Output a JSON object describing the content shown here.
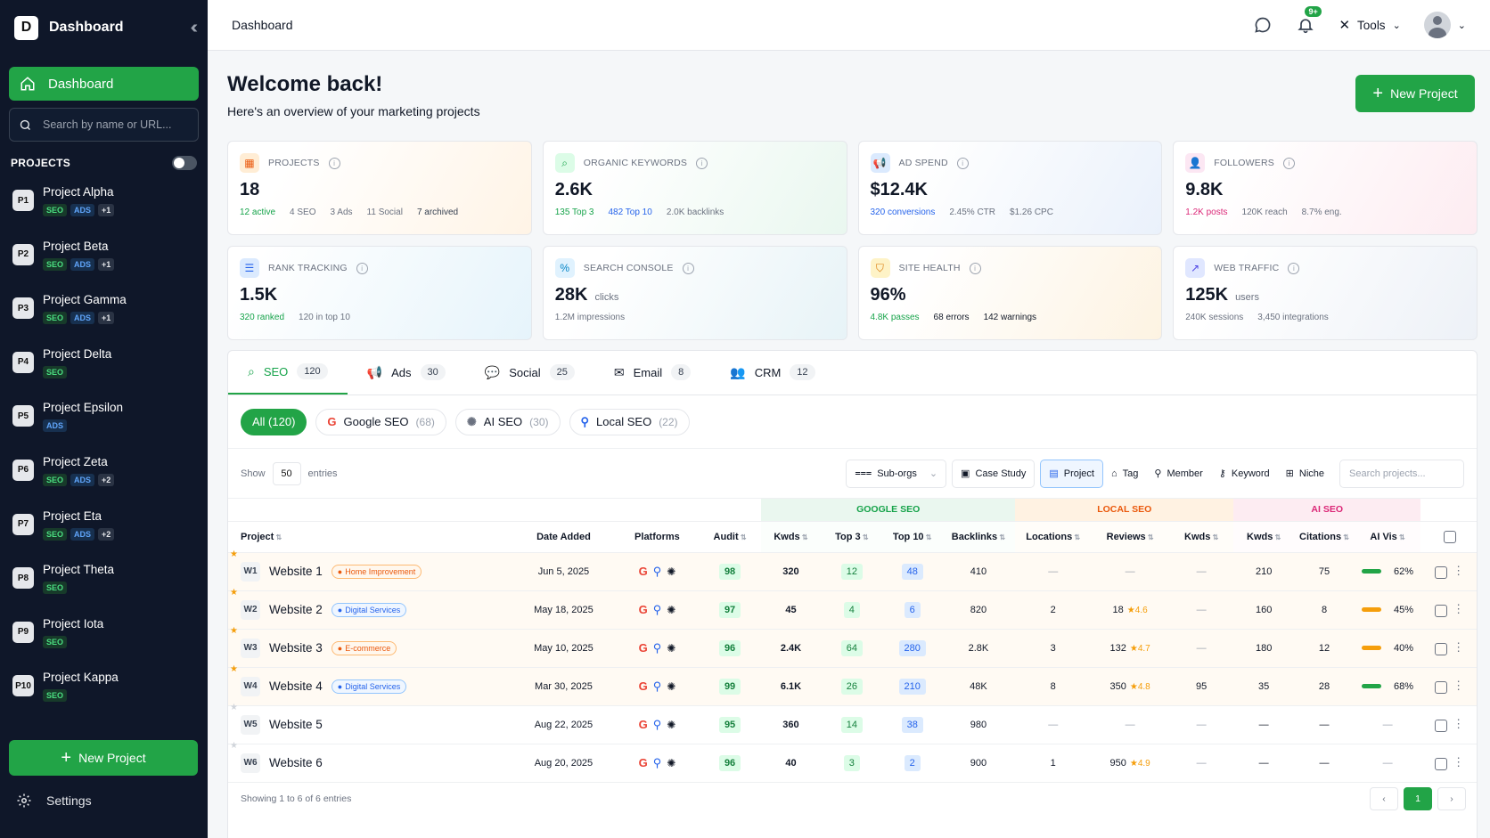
{
  "sidebar": {
    "logo_letter": "D",
    "title": "Dashboard",
    "nav_dashboard": "Dashboard",
    "search_placeholder": "Search by name or URL...",
    "projects_heading": "PROJECTS",
    "projects": [
      {
        "code": "P1",
        "name": "Project Alpha",
        "tags": [
          "SEO",
          "ADS",
          "+1"
        ]
      },
      {
        "code": "P2",
        "name": "Project Beta",
        "tags": [
          "SEO",
          "ADS",
          "+1"
        ]
      },
      {
        "code": "P3",
        "name": "Project Gamma",
        "tags": [
          "SEO",
          "ADS",
          "+1"
        ]
      },
      {
        "code": "P4",
        "name": "Project Delta",
        "tags": [
          "SEO"
        ]
      },
      {
        "code": "P5",
        "name": "Project Epsilon",
        "tags": [
          "ADS"
        ]
      },
      {
        "code": "P6",
        "name": "Project Zeta",
        "tags": [
          "SEO",
          "ADS",
          "+2"
        ]
      },
      {
        "code": "P7",
        "name": "Project Eta",
        "tags": [
          "SEO",
          "ADS",
          "+2"
        ]
      },
      {
        "code": "P8",
        "name": "Project Theta",
        "tags": [
          "SEO"
        ]
      },
      {
        "code": "P9",
        "name": "Project Iota",
        "tags": [
          "SEO"
        ]
      },
      {
        "code": "P10",
        "name": "Project Kappa",
        "tags": [
          "SEO"
        ]
      }
    ],
    "new_project": "New Project",
    "settings": "Settings"
  },
  "topbar": {
    "breadcrumb": "Dashboard",
    "notif_badge": "9+",
    "tools": "Tools"
  },
  "welcome": {
    "title": "Welcome back!",
    "subtitle": "Here's an overview of your marketing projects",
    "new_project": "New Project"
  },
  "cards": [
    {
      "label": "PROJECTS",
      "value": "18",
      "unit": "",
      "subs": [
        {
          "t": "12 active",
          "c": "#16a34a"
        },
        {
          "t": "4 SEO",
          "c": ""
        },
        {
          "t": "3 Ads",
          "c": ""
        },
        {
          "t": "11 Social",
          "c": ""
        },
        {
          "t": "7 archived",
          "c": "#374151"
        }
      ],
      "cls": "c-orange",
      "iconbg": "#ffedd5",
      "iconc": "#ea580c",
      "icon": "▦"
    },
    {
      "label": "ORGANIC KEYWORDS",
      "value": "2.6K",
      "unit": "",
      "subs": [
        {
          "t": "135 Top 3",
          "c": "#16a34a"
        },
        {
          "t": "482 Top 10",
          "c": "#2563eb"
        },
        {
          "t": "2.0K backlinks",
          "c": ""
        }
      ],
      "cls": "c-green",
      "iconbg": "#dcfce7",
      "iconc": "#16a34a",
      "icon": "⌕"
    },
    {
      "label": "AD SPEND",
      "value": "$12.4K",
      "unit": "",
      "subs": [
        {
          "t": "320 conversions",
          "c": "#2563eb"
        },
        {
          "t": "2.45% CTR",
          "c": ""
        },
        {
          "t": "$1.26 CPC",
          "c": ""
        }
      ],
      "cls": "c-blue",
      "iconbg": "#dbeafe",
      "iconc": "#2563eb",
      "icon": "📢"
    },
    {
      "label": "FOLLOWERS",
      "value": "9.8K",
      "unit": "",
      "subs": [
        {
          "t": "1.2K posts",
          "c": "#db2777"
        },
        {
          "t": "120K reach",
          "c": ""
        },
        {
          "t": "8.7% eng.",
          "c": ""
        }
      ],
      "cls": "c-pink",
      "iconbg": "#fce7f3",
      "iconc": "#db2777",
      "icon": "👤"
    },
    {
      "label": "RANK TRACKING",
      "value": "1.5K",
      "unit": "",
      "subs": [
        {
          "t": "320 ranked",
          "c": "#16a34a"
        },
        {
          "t": "120 in top 10",
          "c": ""
        }
      ],
      "cls": "c-cyan",
      "iconbg": "#dbeafe",
      "iconc": "#2563eb",
      "icon": "☰"
    },
    {
      "label": "SEARCH CONSOLE",
      "value": "28K",
      "unit": "clicks",
      "subs": [
        {
          "t": "1.2M impressions",
          "c": ""
        }
      ],
      "cls": "c-teal",
      "iconbg": "#e0f2fe",
      "iconc": "#0284c7",
      "icon": "%"
    },
    {
      "label": "SITE HEALTH",
      "value": "96%",
      "unit": "",
      "subs": [
        {
          "t": "4.8K passes",
          "c": "#16a34a"
        },
        {
          "t": "68 errors",
          "c": "#111827"
        },
        {
          "t": "142 warnings",
          "c": "#111827"
        }
      ],
      "cls": "c-amber",
      "iconbg": "#fef3c7",
      "iconc": "#d97706",
      "icon": "⛉"
    },
    {
      "label": "WEB TRAFFIC",
      "value": "125K",
      "unit": "users",
      "subs": [
        {
          "t": "240K sessions",
          "c": ""
        },
        {
          "t": "3,450 integrations",
          "c": ""
        }
      ],
      "cls": "c-gray",
      "iconbg": "#e0e7ff",
      "iconc": "#4f46e5",
      "icon": "↗"
    }
  ],
  "tabs": [
    {
      "label": "SEO",
      "count": "120",
      "icon": "⌕"
    },
    {
      "label": "Ads",
      "count": "30",
      "icon": "📢"
    },
    {
      "label": "Social",
      "count": "25",
      "icon": "💬"
    },
    {
      "label": "Email",
      "count": "8",
      "icon": "✉"
    },
    {
      "label": "CRM",
      "count": "12",
      "icon": "👥"
    }
  ],
  "filters": [
    {
      "label": "All (120)",
      "n": ""
    },
    {
      "label": "Google SEO",
      "n": "(68)"
    },
    {
      "label": "AI SEO",
      "n": "(30)"
    },
    {
      "label": "Local SEO",
      "n": "(22)"
    }
  ],
  "controls": {
    "show": "Show",
    "entries_value": "50",
    "entries": "entries",
    "suborgs": "Sub-orgs",
    "case_study": "Case Study",
    "project": "Project",
    "tag": "Tag",
    "member": "Member",
    "keyword": "Keyword",
    "niche": "Niche",
    "search_placeholder": "Search projects..."
  },
  "table": {
    "groups": {
      "google": "GOOGLE SEO",
      "local": "LOCAL SEO",
      "ai": "AI SEO"
    },
    "columns": [
      "Project",
      "Date Added",
      "Platforms",
      "Audit",
      "Kwds",
      "Top 3",
      "Top 10",
      "Backlinks",
      "Locations",
      "Reviews",
      "Kwds",
      "Kwds",
      "Citations",
      "AI Vis"
    ],
    "rows": [
      {
        "code": "W1",
        "name": "Website 1",
        "cat": "Home Improvement",
        "catc": "or",
        "date": "Jun 5, 2025",
        "audit": "98",
        "kwds": "320",
        "top3": "12",
        "top10": "48",
        "backlinks": "410",
        "loc": "—",
        "reviews": "—",
        "rating": "",
        "lkwds": "—",
        "akwds": "210",
        "cit": "75",
        "vis": "62%",
        "visc": "#22a447",
        "star": true
      },
      {
        "code": "W2",
        "name": "Website 2",
        "cat": "Digital Services",
        "catc": "bl",
        "date": "May 18, 2025",
        "audit": "97",
        "kwds": "45",
        "top3": "4",
        "top10": "6",
        "backlinks": "820",
        "loc": "2",
        "reviews": "18",
        "rating": "★4.6",
        "lkwds": "—",
        "akwds": "160",
        "cit": "8",
        "vis": "45%",
        "visc": "#f59e0b",
        "star": true
      },
      {
        "code": "W3",
        "name": "Website 3",
        "cat": "E-commerce",
        "catc": "or",
        "date": "May 10, 2025",
        "audit": "96",
        "kwds": "2.4K",
        "top3": "64",
        "top10": "280",
        "backlinks": "2.8K",
        "loc": "3",
        "reviews": "132",
        "rating": "★4.7",
        "lkwds": "—",
        "akwds": "180",
        "cit": "12",
        "vis": "40%",
        "visc": "#f59e0b",
        "star": true
      },
      {
        "code": "W4",
        "name": "Website 4",
        "cat": "Digital Services",
        "catc": "bl",
        "date": "Mar 30, 2025",
        "audit": "99",
        "kwds": "6.1K",
        "top3": "26",
        "top10": "210",
        "backlinks": "48K",
        "loc": "8",
        "reviews": "350",
        "rating": "★4.8",
        "lkwds": "95",
        "akwds": "35",
        "cit": "28",
        "vis": "68%",
        "visc": "#22a447",
        "star": true
      },
      {
        "code": "W5",
        "name": "Website 5",
        "cat": "",
        "catc": "",
        "date": "Aug 22, 2025",
        "audit": "95",
        "kwds": "360",
        "top3": "14",
        "top10": "38",
        "backlinks": "980",
        "loc": "—",
        "reviews": "—",
        "rating": "",
        "lkwds": "—",
        "akwds": "—",
        "cit": "—",
        "vis": "—",
        "visc": "",
        "star": false
      },
      {
        "code": "W6",
        "name": "Website 6",
        "cat": "",
        "catc": "",
        "date": "Aug 20, 2025",
        "audit": "96",
        "kwds": "40",
        "top3": "3",
        "top10": "2",
        "backlinks": "900",
        "loc": "1",
        "reviews": "950",
        "rating": "★4.9",
        "lkwds": "—",
        "akwds": "—",
        "cit": "—",
        "vis": "—",
        "visc": "",
        "star": false
      }
    ]
  },
  "footer": {
    "showing": "Showing 1 to 6 of 6 entries",
    "page": "1"
  }
}
